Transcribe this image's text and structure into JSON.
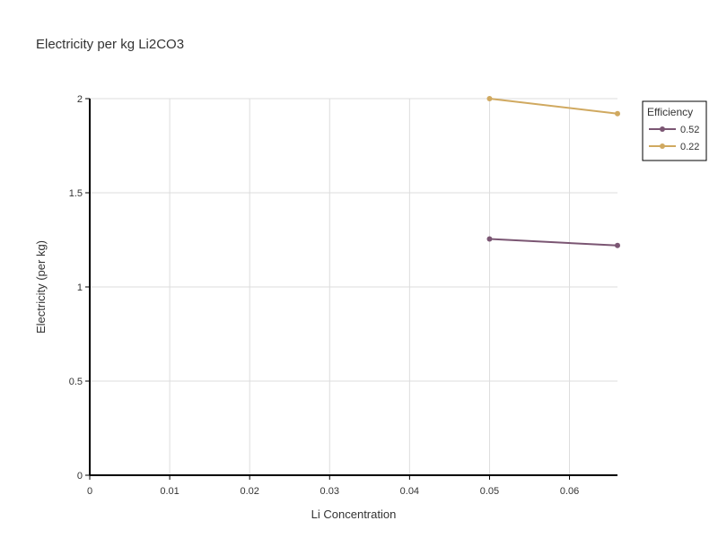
{
  "chart_data": {
    "type": "line",
    "title": "Electricity per kg Li2CO3",
    "xlabel": "Li Concentration",
    "ylabel": "Electricity (per kg)",
    "xlim": [
      0,
      0.066
    ],
    "ylim": [
      0,
      2
    ],
    "xticks": [
      0,
      0.01,
      0.02,
      0.03,
      0.04,
      0.05,
      0.06
    ],
    "xtick_labels": [
      "0",
      "0.01",
      "0.02",
      "0.03",
      "0.04",
      "0.05",
      "0.06"
    ],
    "yticks": [
      0,
      0.5,
      1,
      1.5,
      2
    ],
    "ytick_labels": [
      "0",
      "0.5",
      "1",
      "1.5",
      "2"
    ],
    "grid": true,
    "legend": {
      "title": "Efficiency",
      "placement": "top-right, outside plot"
    },
    "series": [
      {
        "name": "0.52",
        "color": "#7b5673",
        "x": [
          0.05,
          0.066
        ],
        "y": [
          1.255,
          1.22
        ]
      },
      {
        "name": "0.22",
        "color": "#d0a960",
        "x": [
          0.05,
          0.066
        ],
        "y": [
          2.0,
          1.92
        ]
      }
    ]
  }
}
